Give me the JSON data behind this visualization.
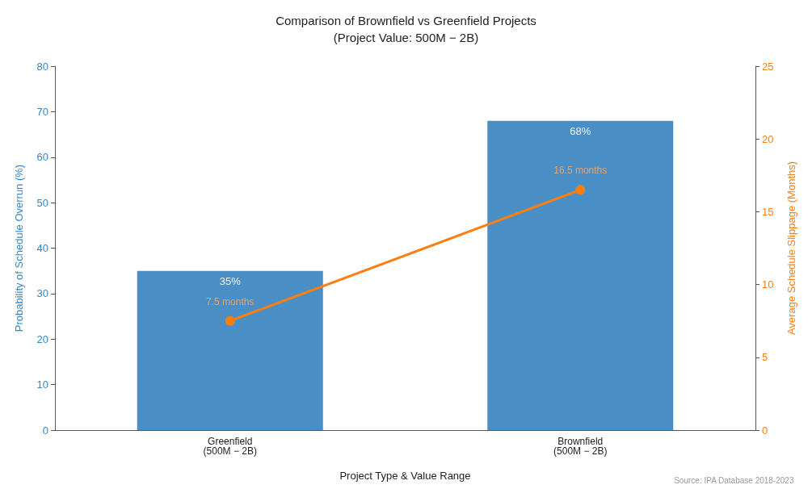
{
  "chart_data": {
    "type": "bar",
    "title": "Comparison of Brownfield vs Greenfield Projects\n(Project Value: 500M − 2B)",
    "xlabel": "Project Type & Value Range",
    "ylabel": "Probability of Schedule Overrun (%)",
    "y2label": "Average Schedule Slippage (Months)",
    "categories": [
      "Greenfield\n(500M − 2B)",
      "Brownfield\n(500M − 2B)"
    ],
    "series": [
      {
        "color": "#4a8ec6",
        "values": [
          35,
          68
        ],
        "value_labels": [
          "35%",
          "68%"
        ]
      },
      {
        "type": "line",
        "axis": "y2",
        "color": "#ff7f0e",
        "values": [
          7.5,
          16.5
        ],
        "value_labels": [
          "7.5 months",
          "16.5 months"
        ]
      }
    ],
    "ylim": [
      0,
      80
    ],
    "yticks": [
      0,
      10,
      20,
      30,
      40,
      50,
      60,
      70,
      80
    ],
    "y2lim": [
      0,
      25
    ],
    "y2ticks": [
      0,
      5,
      10,
      15,
      20,
      25
    ],
    "marker": "circle",
    "line_style": "solid",
    "grid": false,
    "annotations": [
      "Source: IPA Database 2018-2023"
    ]
  }
}
